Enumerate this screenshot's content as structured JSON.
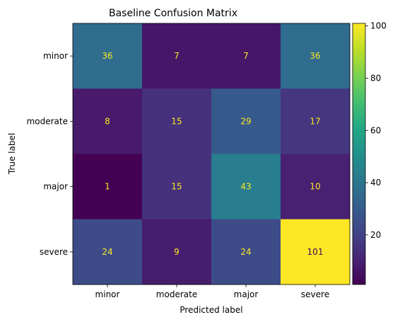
{
  "chart_data": {
    "type": "heatmap",
    "title": "Baseline Confusion Matrix",
    "xlabel": "Predicted label",
    "ylabel": "True label",
    "x_categories": [
      "minor",
      "moderate",
      "major",
      "severe"
    ],
    "y_categories": [
      "minor",
      "moderate",
      "major",
      "severe"
    ],
    "values": [
      [
        36,
        7,
        7,
        36
      ],
      [
        8,
        15,
        29,
        17
      ],
      [
        1,
        15,
        43,
        10
      ],
      [
        24,
        9,
        24,
        101
      ]
    ],
    "colormap": "viridis",
    "value_range": [
      1,
      101
    ],
    "colorbar_ticks": [
      20,
      40,
      60,
      80,
      100
    ],
    "annotation_color_light": "#fde725",
    "annotation_color_dark": "#440154"
  }
}
